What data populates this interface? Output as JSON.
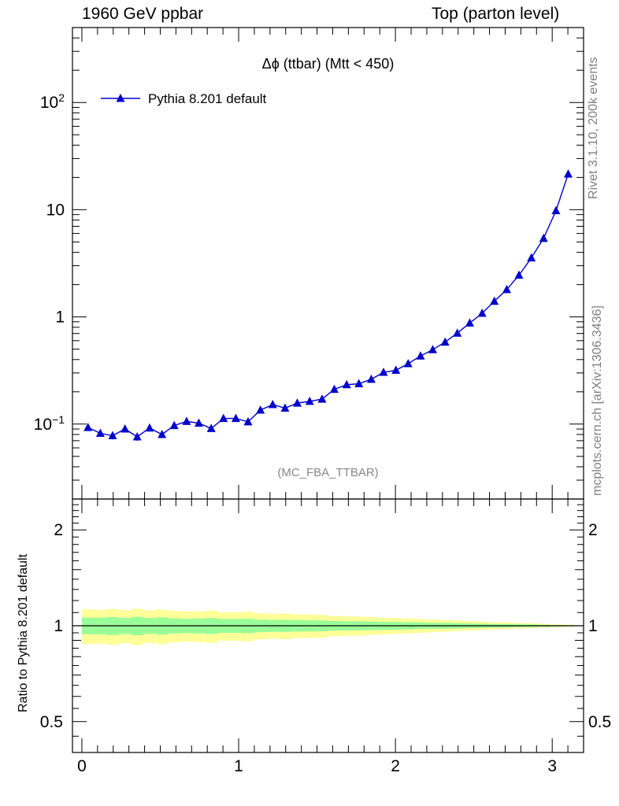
{
  "header": {
    "left": "1960 GeV ppbar",
    "right": "Top (parton level)"
  },
  "side_text": {
    "rivet": "Rivet 3.1.10,  200k events",
    "mcplots": "mcplots.cern.ch [arXiv:1306.3436]"
  },
  "colors": {
    "series": "#0000cc",
    "band_inner": "#99ff99",
    "band_outer": "#ffff99",
    "watermark": "#888888"
  },
  "chart_data": [
    {
      "type": "line",
      "title": "Δϕ (ttbar) (Mtt < 450)",
      "annotation": "(MC_FBA_TTBAR)",
      "xlabel": "",
      "ylabel": "",
      "yscale": "log",
      "xlim": [
        -0.06,
        3.2
      ],
      "ylim": [
        0.02,
        500
      ],
      "yticks": [
        {
          "value": 0.1,
          "base": "10",
          "exp": "−1"
        },
        {
          "value": 1,
          "label": "1"
        },
        {
          "value": 10,
          "label": "10"
        },
        {
          "value": 100,
          "base": "10",
          "exp": "2"
        }
      ],
      "legend": {
        "position": "top-left"
      },
      "series": [
        {
          "name": "Pythia 8.201 default",
          "marker": "triangle",
          "x": [
            0.039,
            0.118,
            0.196,
            0.275,
            0.353,
            0.432,
            0.511,
            0.589,
            0.668,
            0.746,
            0.825,
            0.903,
            0.982,
            1.06,
            1.139,
            1.217,
            1.296,
            1.374,
            1.453,
            1.532,
            1.61,
            1.689,
            1.767,
            1.846,
            1.924,
            2.003,
            2.081,
            2.16,
            2.238,
            2.317,
            2.395,
            2.474,
            2.553,
            2.631,
            2.71,
            2.788,
            2.867,
            2.945,
            3.024,
            3.102
          ],
          "y": [
            0.093,
            0.082,
            0.078,
            0.09,
            0.076,
            0.092,
            0.08,
            0.097,
            0.106,
            0.102,
            0.091,
            0.113,
            0.113,
            0.105,
            0.135,
            0.152,
            0.141,
            0.157,
            0.163,
            0.171,
            0.211,
            0.233,
            0.238,
            0.262,
            0.304,
            0.318,
            0.366,
            0.432,
            0.495,
            0.582,
            0.706,
            0.876,
            1.08,
            1.4,
            1.8,
            2.45,
            3.55,
            5.4,
            9.8,
            21.5
          ],
          "yerr": [
            0.006,
            0.006,
            0.006,
            0.006,
            0.006,
            0.006,
            0.006,
            0.006,
            0.006,
            0.006,
            0.006,
            0.006,
            0.006,
            0.006,
            0.007,
            0.007,
            0.007,
            0.007,
            0.007,
            0.007,
            0.008,
            0.008,
            0.008,
            0.008,
            0.009,
            0.009,
            0.01,
            0.011,
            0.012,
            0.013,
            0.015,
            0.017,
            0.02,
            0.023,
            0.027,
            0.033,
            0.04,
            0.05,
            0.07,
            0.1
          ]
        }
      ]
    },
    {
      "type": "area",
      "ylabel": "Ratio to Pythia 8.201 default",
      "yscale": "log",
      "xlim": [
        -0.06,
        3.2
      ],
      "ylim": [
        0.4,
        2.5
      ],
      "xticks": [
        0,
        1,
        2,
        3
      ],
      "yticks": [
        0.5,
        1,
        2
      ],
      "reference_line": 1,
      "bands": {
        "x": [
          0.039,
          0.118,
          0.196,
          0.275,
          0.353,
          0.432,
          0.511,
          0.589,
          0.668,
          0.746,
          0.825,
          0.903,
          0.982,
          1.06,
          1.139,
          1.217,
          1.296,
          1.374,
          1.453,
          1.532,
          1.61,
          1.689,
          1.767,
          1.846,
          1.924,
          2.003,
          2.081,
          2.16,
          2.238,
          2.317,
          2.395,
          2.474,
          2.553,
          2.631,
          2.71,
          2.788,
          2.867,
          2.945,
          3.024,
          3.102
        ],
        "inner_half_width": [
          0.06,
          0.06,
          0.065,
          0.058,
          0.066,
          0.057,
          0.062,
          0.055,
          0.052,
          0.054,
          0.058,
          0.05,
          0.05,
          0.052,
          0.045,
          0.043,
          0.044,
          0.041,
          0.04,
          0.039,
          0.035,
          0.033,
          0.033,
          0.031,
          0.029,
          0.028,
          0.026,
          0.024,
          0.022,
          0.021,
          0.019,
          0.017,
          0.015,
          0.013,
          0.012,
          0.01,
          0.009,
          0.007,
          0.005,
          0.004
        ],
        "outer_half_width": [
          0.125,
          0.122,
          0.128,
          0.118,
          0.13,
          0.117,
          0.124,
          0.113,
          0.108,
          0.11,
          0.116,
          0.103,
          0.103,
          0.107,
          0.094,
          0.089,
          0.092,
          0.086,
          0.084,
          0.082,
          0.073,
          0.07,
          0.069,
          0.065,
          0.06,
          0.058,
          0.054,
          0.05,
          0.046,
          0.042,
          0.038,
          0.034,
          0.03,
          0.026,
          0.023,
          0.02,
          0.017,
          0.014,
          0.01,
          0.008
        ]
      }
    }
  ]
}
